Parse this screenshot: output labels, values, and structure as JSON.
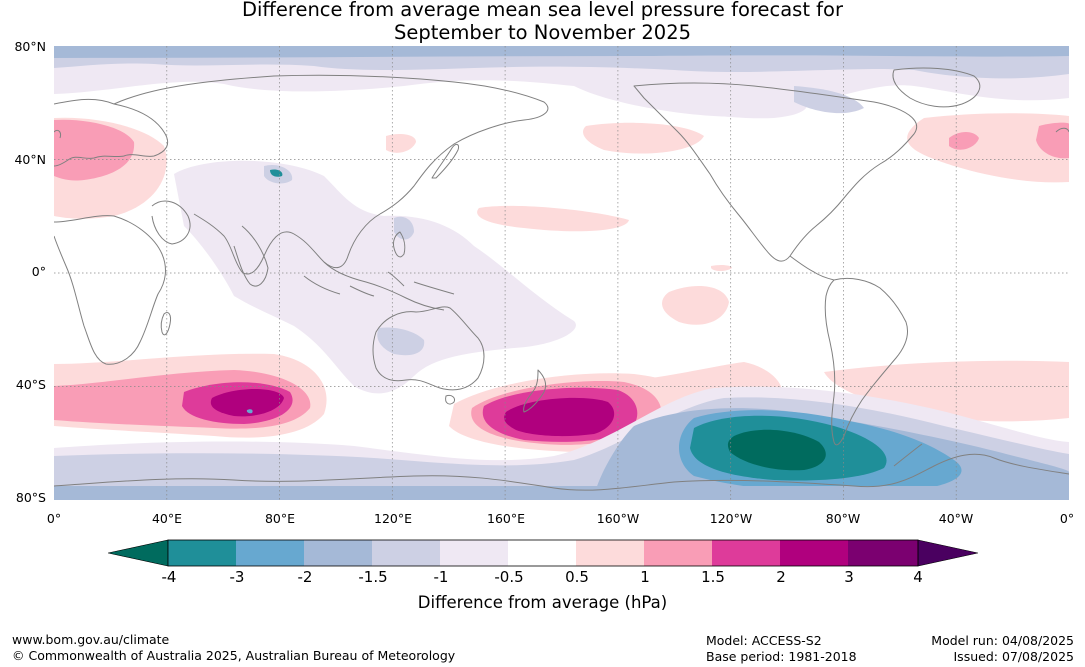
{
  "title": {
    "line1": "Difference from average mean sea level pressure forecast for",
    "line2": "September to November 2025"
  },
  "map": {
    "lat_labels": [
      "80°N",
      "40°N",
      "0°",
      "40°S",
      "80°S"
    ],
    "lon_labels": [
      "0°",
      "40°E",
      "80°E",
      "120°E",
      "160°E",
      "160°W",
      "120°W",
      "80°W",
      "40°W",
      "0°"
    ]
  },
  "legend": {
    "label": "Difference from average (hPa)",
    "ticks": [
      "-4",
      "-3",
      "-2",
      "-1.5",
      "-1",
      "-0.5",
      "0.5",
      "1",
      "1.5",
      "2",
      "3",
      "4"
    ],
    "colors": {
      "below_-4": "#006b5e",
      "-4_-3": "#1f8f99",
      "-3_-2": "#67a8d0",
      "-2_-1.5": "#a5b9d7",
      "-1.5_-1": "#cdd0e4",
      "-1_-0.5": "#efe8f3",
      "-0.5_0.5": "#ffffff",
      "0.5_1": "#fddbdb",
      "1_1.5": "#f99db6",
      "1.5_2": "#de3b9a",
      "2_3": "#b0007e",
      "3_4": "#7b0070",
      "above_4": "#4a0060"
    }
  },
  "footer": {
    "url": "www.bom.gov.au/climate",
    "copyright": "© Commonwealth of Australia 2025, Australian Bureau of Meteorology",
    "model": "Model: ACCESS-S2",
    "base_period": "Base period: 1981-2018",
    "model_run": "Model run: 04/08/2025",
    "issued": "Issued: 07/08/2025"
  }
}
